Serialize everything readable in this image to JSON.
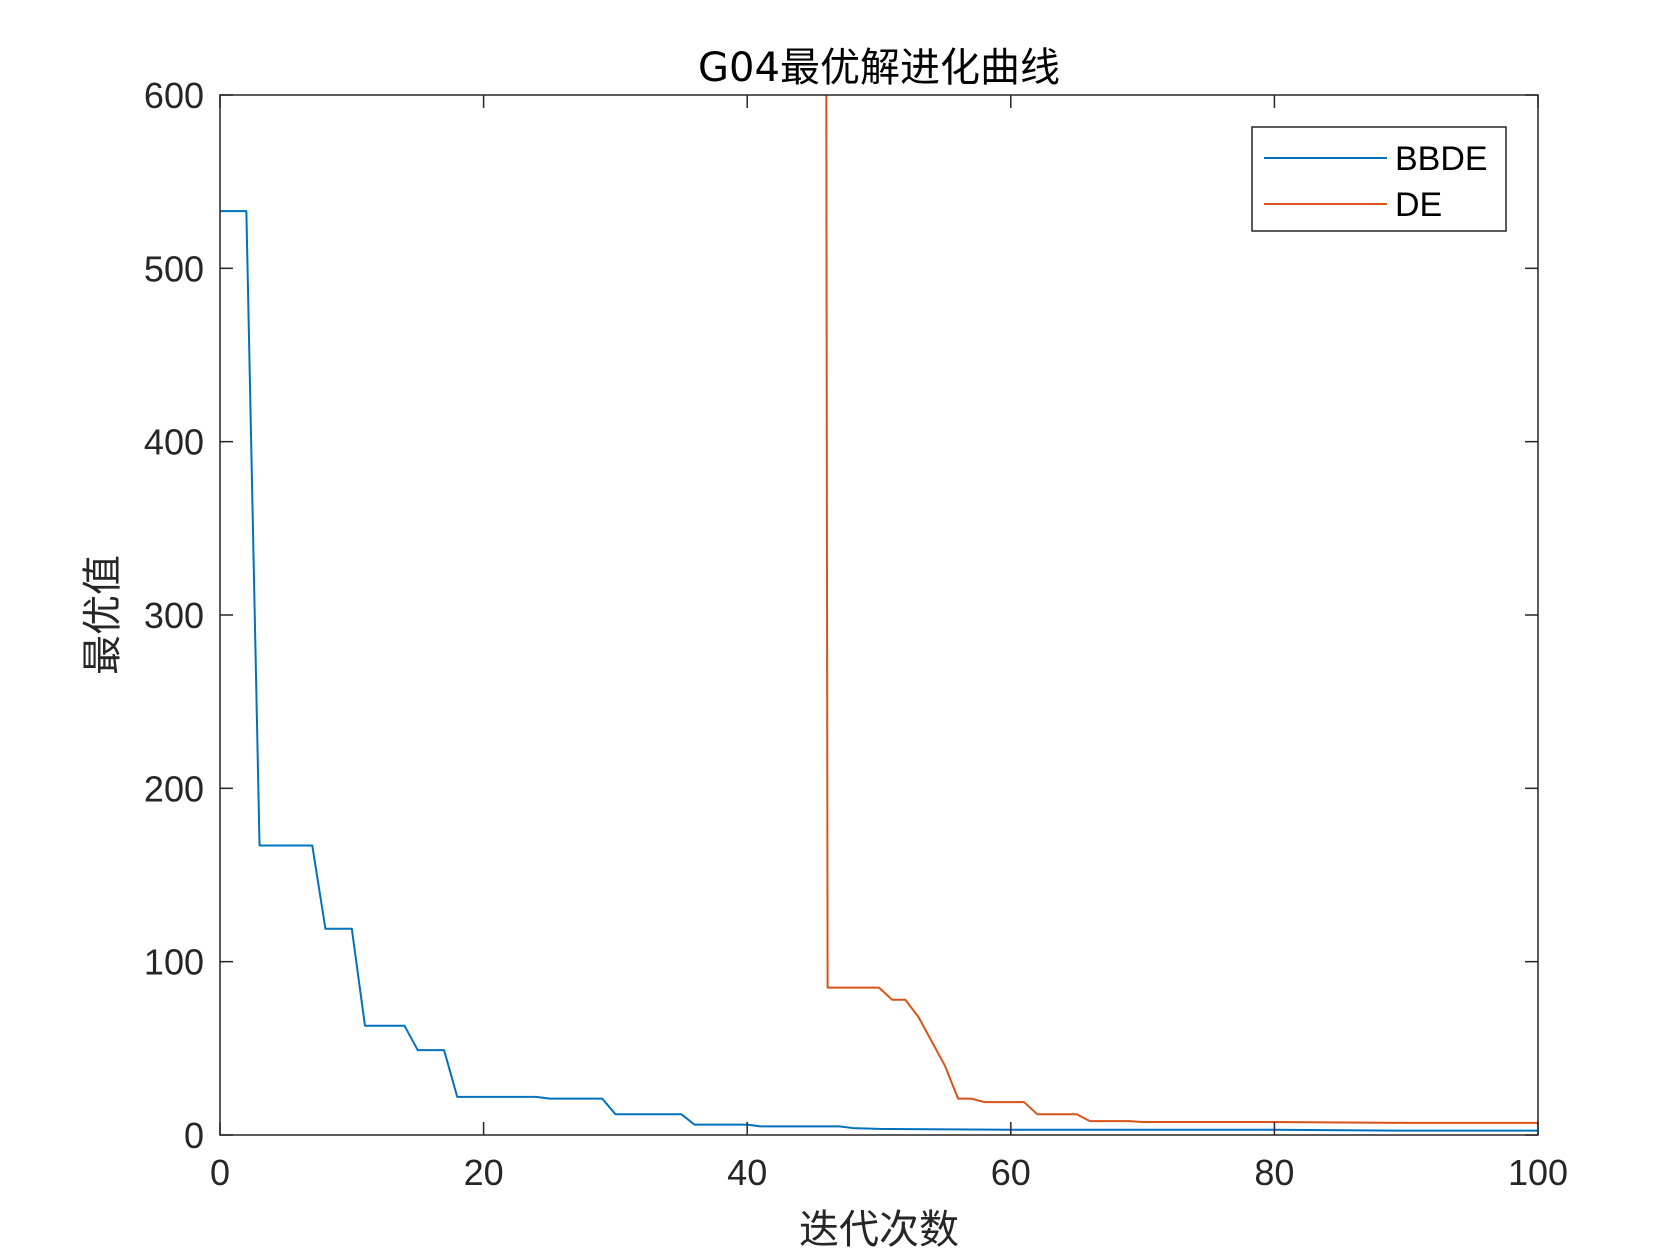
{
  "chart_data": {
    "type": "line",
    "title": "G04最优解进化曲线",
    "xlabel": "迭代次数",
    "ylabel": "最优值",
    "xlim": [
      0,
      100
    ],
    "ylim": [
      0,
      600
    ],
    "xticks": [
      "0",
      "20",
      "40",
      "60",
      "80",
      "100"
    ],
    "yticks": [
      "0",
      "100",
      "200",
      "300",
      "400",
      "500",
      "600"
    ],
    "grid": false,
    "legend_position": "top-right",
    "series": [
      {
        "name": "BBDE",
        "color": "#0072BD",
        "x": [
          0,
          2,
          3,
          7,
          8,
          10,
          11,
          14,
          15,
          17,
          18,
          24,
          25,
          29,
          30,
          35,
          36,
          40,
          41,
          47,
          48,
          50,
          60,
          70,
          80,
          90,
          100
        ],
        "y": [
          533,
          533,
          167,
          167,
          119,
          119,
          63,
          63,
          49,
          49,
          22,
          22,
          21,
          21,
          12,
          12,
          6,
          6,
          5,
          5,
          4,
          3.5,
          3,
          3,
          3,
          2.5,
          2.5
        ]
      },
      {
        "name": "DE",
        "color": "#D95319",
        "x": [
          46,
          46.1,
          50,
          51,
          52,
          53,
          55,
          56,
          57,
          58,
          61,
          62,
          65,
          66,
          69,
          70,
          80,
          90,
          100
        ],
        "y": [
          600,
          85,
          85,
          78,
          78,
          68,
          40,
          21,
          21,
          19,
          19,
          12,
          12,
          8,
          8,
          7.5,
          7.5,
          7,
          7
        ]
      }
    ]
  }
}
